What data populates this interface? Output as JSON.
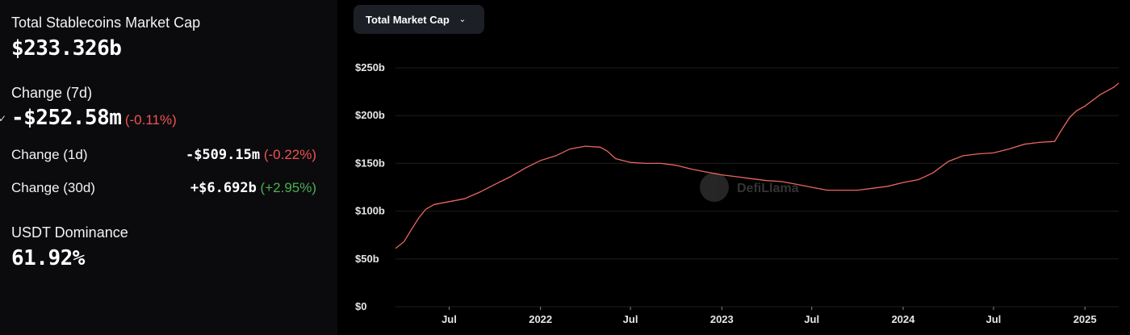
{
  "sidebar": {
    "total_label": "Total Stablecoins Market Cap",
    "total_value": "$233.326b",
    "change7d_label": "Change (7d)",
    "change7d_value": "-$252.58m",
    "change7d_pct": "(-0.11%)",
    "change1d_label": "Change (1d)",
    "change1d_value": "-$509.15m",
    "change1d_pct": "(-0.22%)",
    "change30d_label": "Change (30d)",
    "change30d_value": "+$6.692b",
    "change30d_pct": "(+2.95%)",
    "dominance_label": "USDT Dominance",
    "dominance_value": "61.92%"
  },
  "selector": {
    "label": "Total Market Cap",
    "icon": "chevron-down-icon"
  },
  "watermark": "DefiLlama",
  "colors": {
    "line": "#e8675f",
    "grid": "#1e1e1e",
    "negative": "#ef5350",
    "positive": "#4caf50"
  },
  "chart_data": {
    "type": "line",
    "title": "",
    "xlabel": "",
    "ylabel": "",
    "ylim": [
      0,
      250
    ],
    "xlim": [
      "2021-03-15",
      "2025-03-10"
    ],
    "y_ticks": [
      "$0",
      "$50b",
      "$100b",
      "$150b",
      "$200b",
      "$250b"
    ],
    "x_ticks": [
      {
        "date": "2021-07-01",
        "label": "Jul",
        "bold": false
      },
      {
        "date": "2022-01-01",
        "label": "2022",
        "bold": true
      },
      {
        "date": "2022-07-01",
        "label": "Jul",
        "bold": false
      },
      {
        "date": "2023-01-01",
        "label": "2023",
        "bold": true
      },
      {
        "date": "2023-07-01",
        "label": "Jul",
        "bold": false
      },
      {
        "date": "2024-01-01",
        "label": "2024",
        "bold": true
      },
      {
        "date": "2024-07-01",
        "label": "Jul",
        "bold": false
      },
      {
        "date": "2025-01-01",
        "label": "2025",
        "bold": true
      }
    ],
    "series": [
      {
        "x": [
          "2021-03-15",
          "2021-04-01",
          "2021-04-15",
          "2021-05-01",
          "2021-05-15",
          "2021-06-01",
          "2021-07-01",
          "2021-08-01",
          "2021-09-01",
          "2021-10-01",
          "2021-11-01",
          "2021-12-01",
          "2022-01-01",
          "2022-02-01",
          "2022-03-01",
          "2022-04-01",
          "2022-05-01",
          "2022-05-15",
          "2022-06-01",
          "2022-07-01",
          "2022-08-01",
          "2022-09-01",
          "2022-10-01",
          "2022-11-01",
          "2022-12-01",
          "2023-01-01",
          "2023-02-01",
          "2023-03-01",
          "2023-04-01",
          "2023-05-01",
          "2023-06-01",
          "2023-07-01",
          "2023-08-01",
          "2023-09-01",
          "2023-10-01",
          "2023-11-01",
          "2023-12-01",
          "2024-01-01",
          "2024-02-01",
          "2024-03-01",
          "2024-04-01",
          "2024-05-01",
          "2024-06-01",
          "2024-07-01",
          "2024-08-01",
          "2024-09-01",
          "2024-10-01",
          "2024-11-01",
          "2024-11-15",
          "2024-12-01",
          "2024-12-15",
          "2025-01-01",
          "2025-02-01",
          "2025-03-01",
          "2025-03-10"
        ],
        "values": [
          61,
          68,
          80,
          93,
          102,
          107,
          110,
          113,
          120,
          128,
          136,
          145,
          153,
          158,
          165,
          168,
          167,
          163,
          155,
          151,
          150,
          150,
          148,
          144,
          141,
          138,
          136,
          134,
          132,
          131,
          128,
          125,
          122,
          122,
          122,
          124,
          126,
          130,
          133,
          140,
          152,
          158,
          160,
          161,
          165,
          170,
          172,
          173,
          185,
          198,
          205,
          210,
          222,
          230,
          234
        ]
      }
    ]
  }
}
